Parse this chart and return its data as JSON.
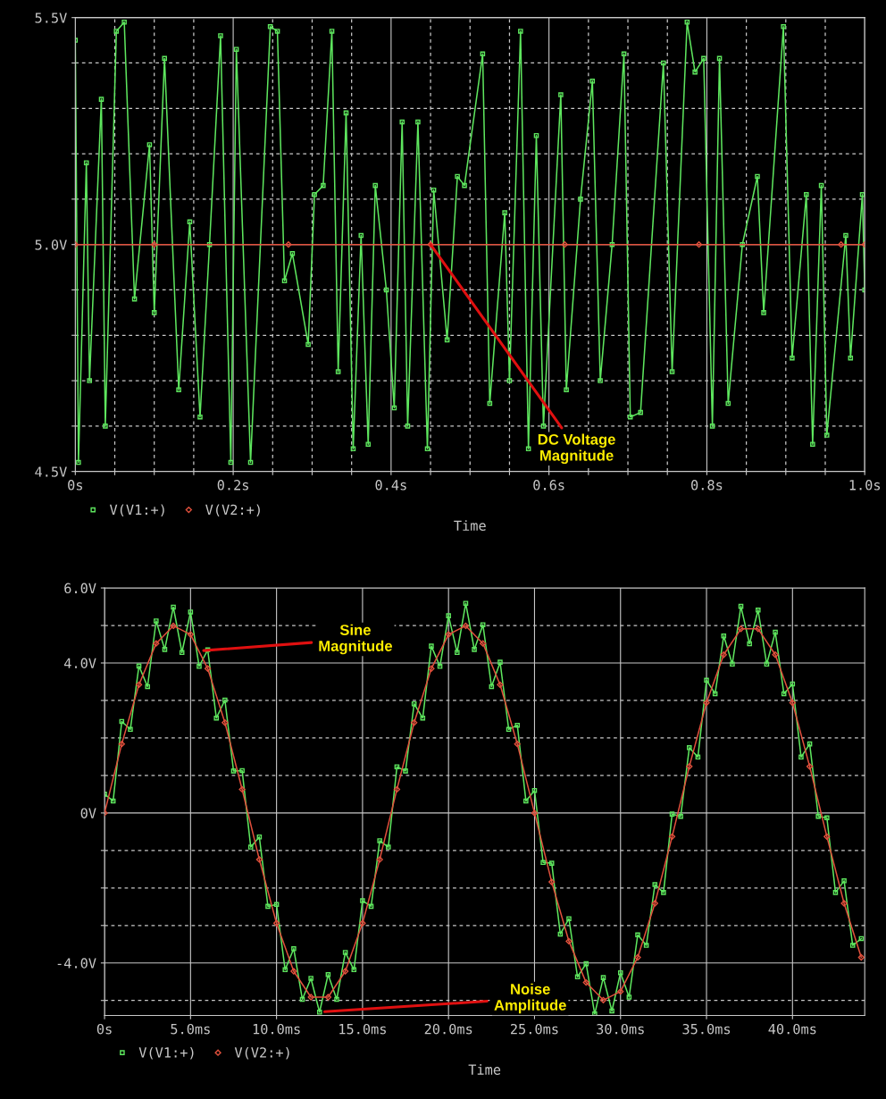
{
  "chart_data": [
    {
      "type": "line",
      "xlabel": "Time",
      "xlim": [
        0,
        1.0
      ],
      "ylim": [
        4.5,
        5.5
      ],
      "xticks": [
        {
          "value": 0,
          "label": "0s"
        },
        {
          "value": 0.05,
          "label": null
        },
        {
          "value": 0.1,
          "label": null
        },
        {
          "value": 0.15,
          "label": null
        },
        {
          "value": 0.2,
          "label": "0.2s"
        },
        {
          "value": 0.25,
          "label": null
        },
        {
          "value": 0.3,
          "label": null
        },
        {
          "value": 0.35,
          "label": null
        },
        {
          "value": 0.4,
          "label": "0.4s"
        },
        {
          "value": 0.45,
          "label": null
        },
        {
          "value": 0.5,
          "label": null
        },
        {
          "value": 0.55,
          "label": null
        },
        {
          "value": 0.6,
          "label": "0.6s"
        },
        {
          "value": 0.65,
          "label": null
        },
        {
          "value": 0.7,
          "label": null
        },
        {
          "value": 0.75,
          "label": null
        },
        {
          "value": 0.8,
          "label": "0.8s"
        },
        {
          "value": 0.85,
          "label": null
        },
        {
          "value": 0.9,
          "label": null
        },
        {
          "value": 0.95,
          "label": null
        },
        {
          "value": 1.0,
          "label": "1.0s"
        }
      ],
      "yticks": [
        {
          "value": 4.5,
          "label": "4.5V"
        },
        {
          "value": 4.6,
          "label": null
        },
        {
          "value": 4.7,
          "label": null
        },
        {
          "value": 4.8,
          "label": null
        },
        {
          "value": 4.9,
          "label": null
        },
        {
          "value": 5.0,
          "label": "5.0V"
        },
        {
          "value": 5.1,
          "label": null
        },
        {
          "value": 5.2,
          "label": null
        },
        {
          "value": 5.3,
          "label": null
        },
        {
          "value": 5.4,
          "label": null
        },
        {
          "value": 5.5,
          "label": "5.5V"
        }
      ],
      "grid": true,
      "legend": "bottom left",
      "line_style": "solid",
      "series": [
        {
          "name": "V(V1:+)",
          "color": "#5ee65e",
          "marker": "square",
          "x": [
            0,
            0.004,
            0.014,
            0.018,
            0.033,
            0.038,
            0.052,
            0.062,
            0.075,
            0.094,
            0.1,
            0.113,
            0.131,
            0.145,
            0.158,
            0.17,
            0.184,
            0.197,
            0.204,
            0.222,
            0.247,
            0.256,
            0.265,
            0.275,
            0.295,
            0.303,
            0.314,
            0.325,
            0.333,
            0.343,
            0.352,
            0.362,
            0.371,
            0.38,
            0.394,
            0.404,
            0.414,
            0.421,
            0.434,
            0.446,
            0.454,
            0.471,
            0.484,
            0.493,
            0.516,
            0.525,
            0.544,
            0.55,
            0.564,
            0.574,
            0.584,
            0.593,
            0.615,
            0.622,
            0.64,
            0.655,
            0.665,
            0.68,
            0.695,
            0.703,
            0.716,
            0.745,
            0.756,
            0.775,
            0.785,
            0.796,
            0.807,
            0.816,
            0.827,
            0.845,
            0.864,
            0.872,
            0.897,
            0.908,
            0.926,
            0.934,
            0.945,
            0.952,
            0.976,
            0.982,
            0.997,
            1.0
          ],
          "values": [
            5.45,
            4.52,
            5.18,
            4.7,
            5.32,
            4.6,
            5.47,
            5.49,
            4.88,
            5.22,
            4.85,
            5.41,
            4.68,
            5.05,
            4.62,
            5.0,
            5.46,
            4.52,
            5.43,
            4.52,
            5.48,
            5.47,
            4.92,
            4.98,
            4.78,
            5.11,
            5.13,
            5.47,
            4.72,
            5.29,
            4.55,
            5.02,
            4.56,
            5.13,
            4.9,
            4.64,
            5.27,
            4.6,
            5.27,
            4.55,
            5.12,
            4.79,
            5.15,
            5.13,
            5.42,
            4.65,
            5.07,
            4.7,
            5.47,
            4.55,
            5.24,
            4.6,
            5.33,
            4.68,
            5.1,
            5.36,
            4.7,
            5.0,
            5.42,
            4.62,
            4.63,
            5.4,
            4.72,
            5.49,
            5.38,
            5.41,
            4.6,
            5.41,
            4.65,
            5.0,
            5.15,
            4.85,
            5.48,
            4.75,
            5.11,
            4.56,
            5.13,
            4.58,
            5.02,
            4.75,
            5.11,
            4.9
          ]
        },
        {
          "name": "V(V2:+)",
          "color": "#e0503c",
          "marker": "diamond",
          "x": [
            0,
            0.1,
            0.27,
            0.45,
            0.62,
            0.79,
            0.97,
            1.0
          ],
          "values": [
            5.0,
            5.0,
            5.0,
            5.0,
            5.0,
            5.0,
            5.0,
            5.0
          ]
        }
      ],
      "annotations": [
        {
          "text": "DC Voltage\nMagnitude",
          "x": 0.45,
          "y": 5.0
        }
      ]
    },
    {
      "type": "line",
      "xlabel": "Time",
      "xlim": [
        0,
        44.2
      ],
      "ylim": [
        -5.4,
        6.0
      ],
      "xticks": [
        {
          "value": 0,
          "label": "0s"
        },
        {
          "value": 5,
          "label": "5.0ms"
        },
        {
          "value": 10,
          "label": "10.0ms"
        },
        {
          "value": 15,
          "label": "15.0ms"
        },
        {
          "value": 20,
          "label": "20.0ms"
        },
        {
          "value": 25,
          "label": "25.0ms"
        },
        {
          "value": 30,
          "label": "30.0ms"
        },
        {
          "value": 35,
          "label": "35.0ms"
        },
        {
          "value": 40,
          "label": "40.0ms"
        }
      ],
      "yticks": [
        {
          "value": -5,
          "label": null
        },
        {
          "value": -4,
          "label": "-4.0V"
        },
        {
          "value": -3,
          "label": null
        },
        {
          "value": -2,
          "label": null
        },
        {
          "value": -1,
          "label": null
        },
        {
          "value": 0,
          "label": "0V"
        },
        {
          "value": 1,
          "label": null
        },
        {
          "value": 2,
          "label": null
        },
        {
          "value": 3,
          "label": null
        },
        {
          "value": 4,
          "label": "4.0V"
        },
        {
          "value": 5,
          "label": null
        },
        {
          "value": 6,
          "label": "6.0V"
        }
      ],
      "grid": true,
      "legend": "bottom left",
      "line_style": "solid",
      "series": [
        {
          "name": "V(V1:+)",
          "color": "#5ee65e",
          "marker": "square",
          "x": [
            0,
            0.5,
            1,
            1.5,
            2,
            2.5,
            3,
            3.5,
            4,
            4.5,
            5,
            5.5,
            6,
            6.5,
            7,
            7.5,
            8,
            8.5,
            9,
            9.5,
            10,
            10.5,
            11,
            11.5,
            12,
            12.5,
            13,
            13.5,
            14,
            14.5,
            15,
            15.5,
            16,
            16.5,
            17,
            17.5,
            18,
            18.5,
            19,
            19.5,
            20,
            20.5,
            21,
            21.5,
            22,
            22.5,
            23,
            23.5,
            24,
            24.5,
            25,
            25.5,
            26,
            26.5,
            27,
            27.5,
            28,
            28.5,
            29,
            29.5,
            30,
            30.5,
            31,
            31.5,
            32,
            32.5,
            33,
            33.5,
            34,
            34.5,
            35,
            35.5,
            36,
            36.5,
            37,
            37.5,
            38,
            38.5,
            39,
            39.5,
            40,
            40.5,
            41,
            41.5,
            42,
            42.5,
            43,
            43.5,
            44
          ],
          "values": [
            0.5,
            0.32,
            2.44,
            2.23,
            3.92,
            3.37,
            5.12,
            4.36,
            5.49,
            4.28,
            5.36,
            3.91,
            4.35,
            2.53,
            3.01,
            1.12,
            1.13,
            -0.91,
            -0.64,
            -2.49,
            -2.44,
            -4.18,
            -3.62,
            -4.97,
            -4.41,
            -5.31,
            -4.31,
            -4.97,
            -3.72,
            -4.18,
            -2.34,
            -2.49,
            -0.74,
            -0.91,
            1.23,
            1.12,
            2.91,
            2.53,
            4.45,
            3.91,
            5.26,
            4.28,
            5.59,
            4.36,
            5.02,
            3.37,
            4.02,
            2.23,
            2.34,
            0.32,
            0.6,
            -1.32,
            -1.34,
            -3.23,
            -2.82,
            -4.37,
            -4.02,
            -5.36,
            -4.39,
            -5.28,
            -4.26,
            -4.91,
            -3.25,
            -3.53,
            -1.91,
            -2.12,
            -0.03,
            -0.09,
            1.74,
            1.49,
            3.54,
            3.18,
            4.72,
            3.97,
            5.51,
            4.51,
            5.41,
            3.97,
            4.82,
            3.18,
            3.44,
            1.49,
            1.84,
            -0.09,
            -0.13,
            -2.12,
            -1.81,
            -3.53,
            -3.35
          ]
        },
        {
          "name": "V(V2:+)",
          "color": "#e0503c",
          "marker": "diamond",
          "x": [
            0,
            1,
            2,
            3,
            4,
            5,
            6,
            7,
            8,
            9,
            10,
            11,
            12,
            13,
            14,
            15,
            16,
            17,
            18,
            19,
            20,
            21,
            22,
            23,
            24,
            25,
            26,
            27,
            28,
            29,
            30,
            31,
            32,
            33,
            34,
            35,
            36,
            37,
            38,
            39,
            40,
            41,
            42,
            43,
            44
          ],
          "values": [
            0,
            1.84,
            3.42,
            4.52,
            4.99,
            4.76,
            3.85,
            2.41,
            0.63,
            -1.24,
            -2.94,
            -4.22,
            -4.91,
            -4.91,
            -4.22,
            -2.94,
            -1.24,
            0.63,
            2.41,
            3.85,
            4.76,
            4.99,
            4.52,
            3.42,
            1.84,
            0,
            -1.84,
            -3.42,
            -4.52,
            -4.99,
            -4.76,
            -3.85,
            -2.41,
            -0.63,
            1.24,
            2.94,
            4.22,
            4.91,
            4.91,
            4.22,
            2.94,
            1.24,
            -0.63,
            -2.41,
            -3.85
          ]
        }
      ],
      "annotations": [
        {
          "text": "Sine\nMagnitude",
          "x": 5.76,
          "y": 4.33
        },
        {
          "text": "Noise\nAmplitude",
          "x": 12.8,
          "y": -5.3
        }
      ]
    }
  ]
}
